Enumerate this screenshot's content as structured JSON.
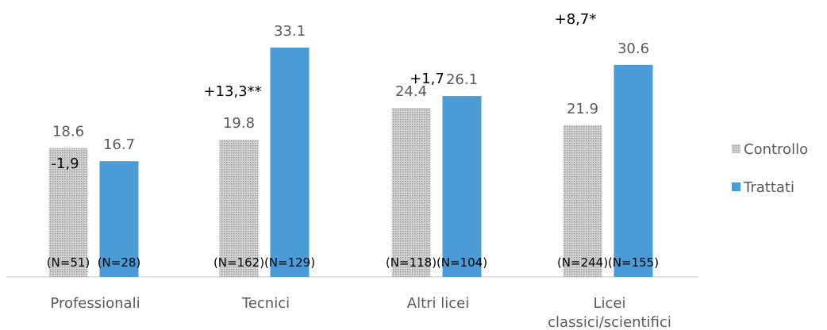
{
  "chart_data": {
    "type": "bar",
    "categories": [
      "Professionali",
      "Tecnici",
      "Altri licei",
      "Licei classici/scientifici"
    ],
    "series": [
      {
        "name": "Controllo",
        "values": [
          18.6,
          19.8,
          24.4,
          21.9
        ],
        "n_labels": [
          "(N=51)",
          "(N=162)",
          "(N=118)",
          "(N=244)"
        ],
        "color": "#bfbfbf"
      },
      {
        "name": "Trattati",
        "values": [
          16.7,
          33.1,
          26.1,
          30.6
        ],
        "n_labels": [
          "(N=28)",
          "(N=129)",
          "(N=104)",
          "(N=155)"
        ],
        "color": "#4a9bd6"
      }
    ],
    "differences": [
      "-1,9",
      "+13,3**",
      "+1,7",
      "+8,7*"
    ],
    "ylim": [
      0,
      36
    ],
    "grid": false,
    "legend_position": "right"
  }
}
